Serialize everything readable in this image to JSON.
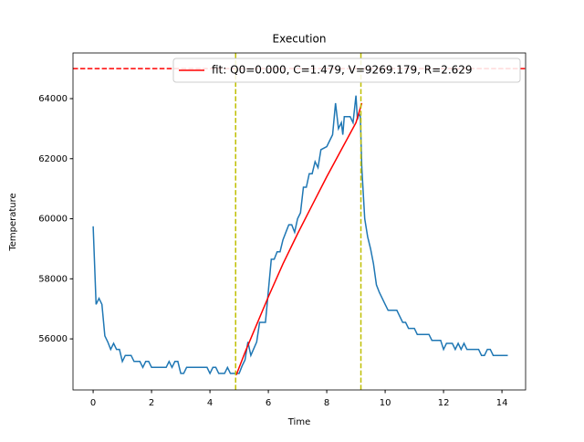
{
  "chart_data": {
    "type": "line",
    "title": "Execution",
    "x_label": "Time",
    "y_label": "Temperature",
    "xlim": [
      -0.69,
      14.81
    ],
    "ylim": [
      54300,
      65520
    ],
    "xticks": [
      0,
      2,
      4,
      6,
      8,
      10,
      12,
      14
    ],
    "yticks": [
      56000,
      58000,
      60000,
      62000,
      64000
    ],
    "legend": "upper right",
    "series": [
      {
        "color": "#1f77b4",
        "x": [
          0,
          0.1,
          0.2,
          0.3,
          0.4,
          0.5,
          0.6,
          0.7,
          0.8,
          0.9,
          1.0,
          1.1,
          1.3,
          1.4,
          1.6,
          1.7,
          1.8,
          1.9,
          2.0,
          2.5,
          2.6,
          2.7,
          2.8,
          2.9,
          3.0,
          3.1,
          3.2,
          3.9,
          4.0,
          4.1,
          4.2,
          4.3,
          4.5,
          4.6,
          4.7,
          5.0,
          5.1,
          5.2,
          5.3,
          5.4,
          5.6,
          5.7,
          5.9,
          6.0,
          6.1,
          6.2,
          6.3,
          6.4,
          6.5,
          6.6,
          6.7,
          6.8,
          6.9,
          7.0,
          7.1,
          7.2,
          7.3,
          7.4,
          7.5,
          7.6,
          7.7,
          7.8,
          8.0,
          8.1,
          8.2,
          8.3,
          8.4,
          8.5,
          8.55,
          8.6,
          8.8,
          8.9,
          9.0,
          9.05,
          9.1,
          9.15,
          9.2,
          9.3,
          9.4,
          9.5,
          9.6,
          9.7,
          9.8,
          9.9,
          10.0,
          10.1,
          10.4,
          10.5,
          10.6,
          10.7,
          10.8,
          11.0,
          11.1,
          11.5,
          11.6,
          11.9,
          12.0,
          12.1,
          12.3,
          12.4,
          12.5,
          12.6,
          12.7,
          12.8,
          13.2,
          13.3,
          13.4,
          13.5,
          13.6,
          13.7,
          14.2
        ],
        "values": [
          59750,
          57150,
          57350,
          57150,
          56100,
          55900,
          55650,
          55850,
          55650,
          55650,
          55250,
          55450,
          55450,
          55250,
          55250,
          55050,
          55250,
          55250,
          55050,
          55050,
          55250,
          55050,
          55250,
          55250,
          54850,
          54850,
          55050,
          55050,
          54850,
          55050,
          55050,
          54850,
          54850,
          55050,
          54850,
          54850,
          55100,
          55300,
          55900,
          55450,
          55900,
          56550,
          56550,
          57600,
          58650,
          58650,
          58900,
          58900,
          59300,
          59550,
          59800,
          59800,
          59550,
          60000,
          60200,
          61050,
          61050,
          61500,
          61500,
          61900,
          61700,
          62300,
          62400,
          62600,
          62800,
          63850,
          63000,
          63200,
          62800,
          63400,
          63400,
          63200,
          64100,
          63300,
          63500,
          63400,
          61700,
          60000,
          59400,
          59000,
          58500,
          57800,
          57550,
          57350,
          57150,
          56950,
          56950,
          56750,
          56550,
          56550,
          56350,
          56350,
          56150,
          56150,
          55950,
          55950,
          55650,
          55850,
          55850,
          55650,
          55850,
          55650,
          55850,
          55650,
          55650,
          55450,
          55450,
          55650,
          55650,
          55450,
          55450
        ]
      },
      {
        "name": "fit: Q0=0.000, C=1.479, V=9269.179, R=2.629",
        "color": "#ff0000",
        "x": [
          4.9,
          5.2,
          5.5,
          6.0,
          6.5,
          7.0,
          7.5,
          8.0,
          8.5,
          9.0,
          9.2
        ],
        "values": [
          54800,
          55550,
          56250,
          57400,
          58500,
          59500,
          60450,
          61400,
          62300,
          63200,
          63850
        ]
      }
    ],
    "hlines": [
      {
        "value": 65000,
        "color": "#ff0000"
      }
    ],
    "vlines": [
      {
        "value": 4.88,
        "color": "#bfbf00"
      },
      {
        "value": 9.17,
        "color": "#bfbf00"
      }
    ]
  }
}
